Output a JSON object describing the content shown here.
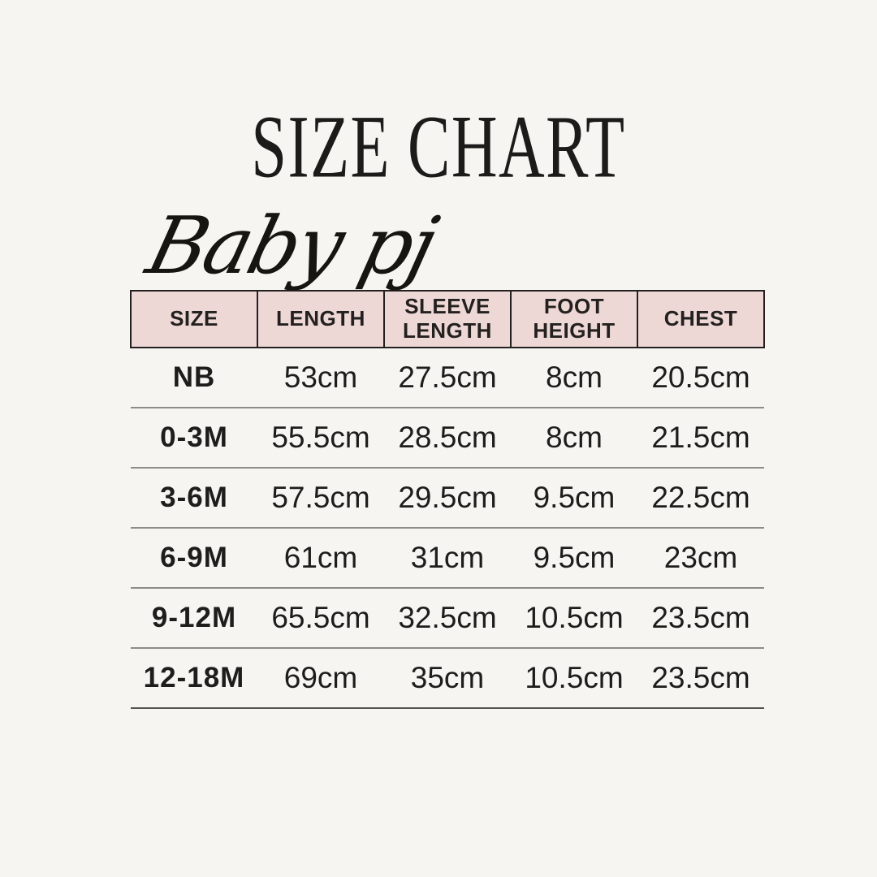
{
  "page": {
    "background_color": "#f7f5f1",
    "title": "SIZE CHART",
    "brand": "Baby pj"
  },
  "table_style": {
    "header_bg_color": "#eed8d6",
    "header_border_color": "#23211f",
    "row_divider_color": "#8d8c88",
    "text_color": "#1e1d1b"
  },
  "chart_data": {
    "type": "table",
    "title": "SIZE CHART",
    "subtitle": "Baby pj",
    "columns": [
      "SIZE",
      "LENGTH",
      "SLEEVE LENGTH",
      "FOOT HEIGHT",
      "CHEST"
    ],
    "rows": [
      [
        "NB",
        "53cm",
        "27.5cm",
        "8cm",
        "20.5cm"
      ],
      [
        "0-3M",
        "55.5cm",
        "28.5cm",
        "8cm",
        "21.5cm"
      ],
      [
        "3-6M",
        "57.5cm",
        "29.5cm",
        "9.5cm",
        "22.5cm"
      ],
      [
        "6-9M",
        "61cm",
        "31cm",
        "9.5cm",
        "23cm"
      ],
      [
        "9-12M",
        "65.5cm",
        "32.5cm",
        "10.5cm",
        "23.5cm"
      ],
      [
        "12-18M",
        "69cm",
        "35cm",
        "10.5cm",
        "23.5cm"
      ]
    ]
  }
}
